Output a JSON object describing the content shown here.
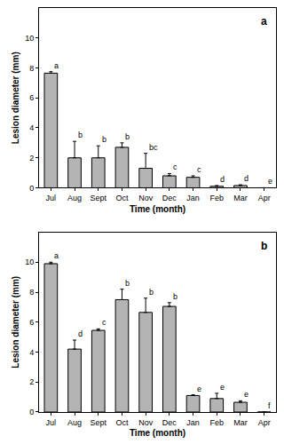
{
  "chart_data": [
    {
      "type": "bar",
      "title": "a",
      "x_label": "Time (month)",
      "y_label": "Lesion diameter (mm)",
      "categories": [
        "Jul",
        "Aug",
        "Sept",
        "Oct",
        "Nov",
        "Dec",
        "Jan",
        "Feb",
        "Mar",
        "Apr"
      ],
      "values": [
        7.65,
        2.0,
        2.0,
        2.7,
        1.3,
        0.8,
        0.7,
        0.1,
        0.15,
        0
      ],
      "error": [
        0.1,
        1.1,
        0.8,
        0.3,
        1.0,
        0.15,
        0.1,
        0.05,
        0.05,
        0
      ],
      "letters": [
        "a",
        "b",
        "b",
        "b",
        "bc",
        "c",
        "c",
        "d",
        "d",
        "e"
      ],
      "color": "#b4b4b4",
      "ylim": [
        0,
        12
      ],
      "yticks": [
        0,
        2,
        4,
        6,
        8,
        10
      ],
      "grid": false
    },
    {
      "type": "bar",
      "title": "b",
      "x_label": "Time (month)",
      "y_label": "Lesion diameter (mm)",
      "categories": [
        "Jul",
        "Aug",
        "Sept",
        "Oct",
        "Nov",
        "Dec",
        "Jan",
        "Feb",
        "Mar",
        "Apr"
      ],
      "values": [
        9.9,
        4.2,
        5.45,
        7.5,
        6.65,
        7.05,
        1.1,
        0.9,
        0.65,
        0
      ],
      "error": [
        0.1,
        0.6,
        0.1,
        0.7,
        0.95,
        0.25,
        0.05,
        0.35,
        0.1,
        0
      ],
      "letters": [
        "a",
        "d",
        "c",
        "b",
        "b",
        "b",
        "e",
        "e",
        "e",
        "f"
      ],
      "color": "#b4b4b4",
      "ylim": [
        0,
        12
      ],
      "yticks": [
        0,
        2,
        4,
        6,
        8,
        10
      ],
      "grid": false
    }
  ]
}
